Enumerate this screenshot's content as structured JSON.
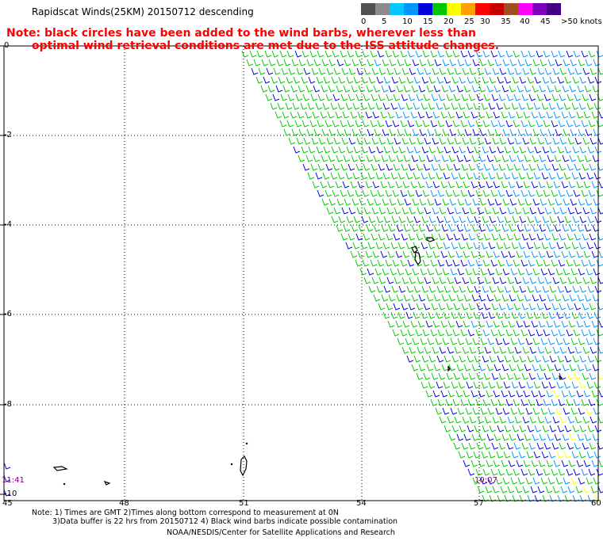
{
  "title": "Rapidscat Winds(25KM) 20150712 descending",
  "note_line1": "Note: black circles have been added to the wind barbs, wherever less than",
  "note_line2": "optimal wind retrieval conditions are met due to the ISS attitude changes.",
  "legend": {
    "labels": [
      "0",
      "5",
      "10",
      "15",
      "20",
      "25",
      "30",
      "35",
      "40",
      "45",
      ">50 knots"
    ],
    "colors": [
      "#505050",
      "#8c8c8c",
      "#00c8ff",
      "#0096ff",
      "#0000dc",
      "#00c800",
      "#ffff00",
      "#ffa000",
      "#ff0000",
      "#c80000",
      "#a05020",
      "#ff00ff",
      "#8000c0",
      "#400080"
    ]
  },
  "axes": {
    "lat_labels": [
      "0",
      "-2",
      "-4",
      "-6",
      "-8",
      "-10"
    ],
    "lon_labels": [
      "45",
      "48",
      "51",
      "54",
      "57",
      "60"
    ]
  },
  "times": {
    "left": "11:41",
    "right": "10:07"
  },
  "footnote_line1": "Note: 1) Times are GMT 2)Times along bottom correspond to measurement at 0N",
  "footnote_line2": "3)Data buffer is 22 hrs from 20150712 4) Black wind barbs indicate possible contamination",
  "credit": "NOAA/NESDIS/Center for Satellite Applications and Research"
}
